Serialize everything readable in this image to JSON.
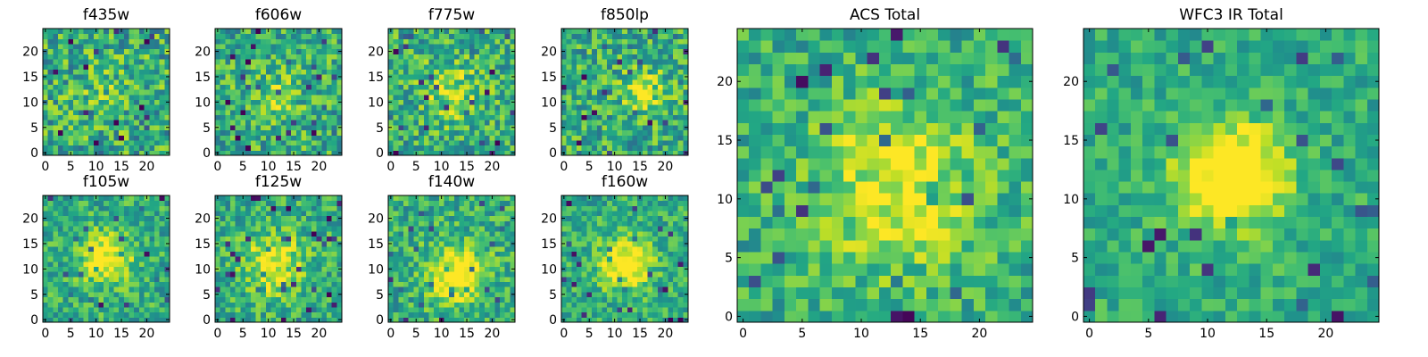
{
  "chart_data": [
    {
      "type": "heatmap",
      "title": "f435w",
      "grid_size": 25,
      "colormap": "viridis",
      "xticks": [
        0,
        5,
        10,
        15,
        20
      ],
      "yticks": [
        0,
        5,
        10,
        15,
        20
      ],
      "blob": {
        "cx": 12,
        "cy": 12,
        "strength": 0.1,
        "sigma": 4
      },
      "noise": 0.55,
      "seed": 11
    },
    {
      "type": "heatmap",
      "title": "f606w",
      "grid_size": 25,
      "colormap": "viridis",
      "xticks": [
        0,
        5,
        10,
        15,
        20
      ],
      "yticks": [
        0,
        5,
        10,
        15,
        20
      ],
      "blob": {
        "cx": 11,
        "cy": 11,
        "strength": 0.18,
        "sigma": 4
      },
      "noise": 0.5,
      "seed": 23
    },
    {
      "type": "heatmap",
      "title": "f775w",
      "grid_size": 25,
      "colormap": "viridis",
      "xticks": [
        0,
        5,
        10,
        15,
        20
      ],
      "yticks": [
        0,
        5,
        10,
        15,
        20
      ],
      "blob": {
        "cx": 12,
        "cy": 12,
        "strength": 0.25,
        "sigma": 4
      },
      "noise": 0.5,
      "seed": 37
    },
    {
      "type": "heatmap",
      "title": "f850lp",
      "grid_size": 25,
      "colormap": "viridis",
      "xticks": [
        0,
        5,
        10,
        15,
        20
      ],
      "yticks": [
        0,
        5,
        10,
        15,
        20
      ],
      "blob": {
        "cx": 16,
        "cy": 12,
        "strength": 0.3,
        "sigma": 3
      },
      "noise": 0.5,
      "seed": 41
    },
    {
      "type": "heatmap",
      "title": "f105w",
      "grid_size": 25,
      "colormap": "viridis",
      "xticks": [
        0,
        5,
        10,
        15,
        20
      ],
      "yticks": [
        0,
        5,
        10,
        15,
        20
      ],
      "blob": {
        "cx": 12,
        "cy": 12,
        "strength": 0.45,
        "sigma": 3.5
      },
      "noise": 0.4,
      "seed": 53
    },
    {
      "type": "heatmap",
      "title": "f125w",
      "grid_size": 25,
      "colormap": "viridis",
      "xticks": [
        0,
        5,
        10,
        15,
        20
      ],
      "yticks": [
        0,
        5,
        10,
        15,
        20
      ],
      "blob": {
        "cx": 11,
        "cy": 11,
        "strength": 0.4,
        "sigma": 4
      },
      "noise": 0.42,
      "seed": 67
    },
    {
      "type": "heatmap",
      "title": "f140w",
      "grid_size": 25,
      "colormap": "viridis",
      "xticks": [
        0,
        5,
        10,
        15,
        20
      ],
      "yticks": [
        0,
        5,
        10,
        15,
        20
      ],
      "blob": {
        "cx": 13,
        "cy": 9,
        "strength": 0.45,
        "sigma": 4
      },
      "noise": 0.42,
      "seed": 79
    },
    {
      "type": "heatmap",
      "title": "f160w",
      "grid_size": 25,
      "colormap": "viridis",
      "xticks": [
        0,
        5,
        10,
        15,
        20
      ],
      "yticks": [
        0,
        5,
        10,
        15,
        20
      ],
      "blob": {
        "cx": 12,
        "cy": 11,
        "strength": 0.5,
        "sigma": 3.5
      },
      "noise": 0.38,
      "seed": 83
    },
    {
      "type": "heatmap",
      "title": "ACS Total",
      "grid_size": 25,
      "colormap": "viridis",
      "xticks": [
        0,
        5,
        10,
        15,
        20
      ],
      "yticks": [
        0,
        5,
        10,
        15,
        20
      ],
      "blob": {
        "cx": 13,
        "cy": 11,
        "strength": 0.35,
        "sigma": 5
      },
      "noise": 0.38,
      "seed": 97
    },
    {
      "type": "heatmap",
      "title": "WFC3 IR Total",
      "grid_size": 25,
      "colormap": "viridis",
      "xticks": [
        0,
        5,
        10,
        15,
        20
      ],
      "yticks": [
        0,
        5,
        10,
        15,
        20
      ],
      "blob": {
        "cx": 12,
        "cy": 12,
        "strength": 0.6,
        "sigma": 3.2
      },
      "noise": 0.3,
      "seed": 101
    }
  ]
}
